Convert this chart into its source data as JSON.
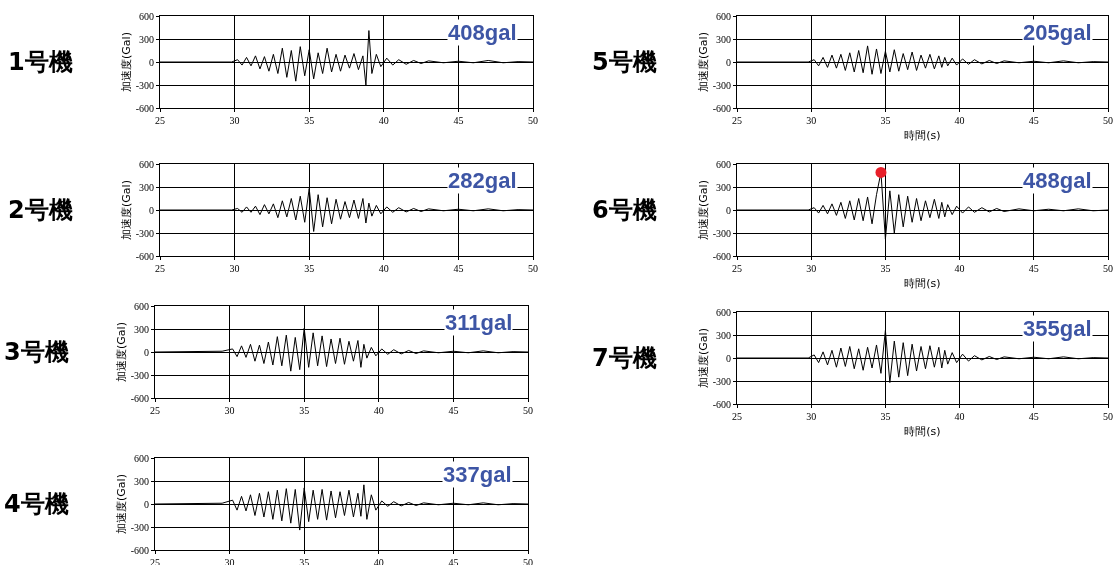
{
  "chart_data": [
    {
      "type": "line",
      "title": "1号機",
      "ylabel": "加速度(Gal)",
      "annotations": [
        "408gal"
      ],
      "xlim": [
        25,
        50
      ],
      "xticks": [
        25,
        30,
        35,
        40,
        45,
        50
      ],
      "ylim": [
        -600,
        600
      ],
      "yticks": [
        -600,
        -300,
        0,
        300,
        600
      ],
      "grid": true,
      "x": [
        25,
        29.8,
        30.2,
        30.5,
        30.8,
        31.1,
        31.4,
        31.7,
        32.0,
        32.3,
        32.6,
        32.9,
        33.2,
        33.5,
        33.8,
        34.1,
        34.4,
        34.7,
        35.0,
        35.3,
        35.6,
        35.9,
        36.2,
        36.5,
        36.8,
        37.1,
        37.4,
        37.7,
        38.0,
        38.3,
        38.6,
        38.8,
        39.0,
        39.2,
        39.5,
        39.8,
        40.2,
        40.6,
        41.0,
        41.5,
        42.0,
        42.5,
        43.0,
        44,
        45,
        46,
        47,
        48,
        49,
        50
      ],
      "series": [
        {
          "color": "#000000",
          "values": [
            0,
            0,
            30,
            -40,
            60,
            -50,
            80,
            -90,
            70,
            -120,
            100,
            -150,
            180,
            -200,
            150,
            -250,
            200,
            -180,
            160,
            -220,
            120,
            -150,
            180,
            -130,
            100,
            -120,
            90,
            -80,
            110,
            -100,
            80,
            -300,
            410,
            -150,
            100,
            -60,
            50,
            -40,
            30,
            -30,
            20,
            -20,
            15,
            -10,
            10,
            -10,
            20,
            -10,
            5,
            0
          ]
        }
      ]
    },
    {
      "type": "line",
      "title": "2号機",
      "ylabel": "加速度(Gal)",
      "annotations": [
        "282gal"
      ],
      "xlim": [
        25,
        50
      ],
      "xticks": [
        25,
        30,
        35,
        40,
        45,
        50
      ],
      "ylim": [
        -600,
        600
      ],
      "yticks": [
        -600,
        -300,
        0,
        300,
        600
      ],
      "grid": true,
      "x": [
        25,
        29.8,
        30.2,
        30.5,
        30.8,
        31.1,
        31.4,
        31.7,
        32.0,
        32.3,
        32.6,
        32.9,
        33.2,
        33.5,
        33.8,
        34.1,
        34.4,
        34.7,
        35.0,
        35.3,
        35.6,
        35.9,
        36.2,
        36.5,
        36.8,
        37.1,
        37.4,
        37.7,
        38.0,
        38.3,
        38.6,
        38.8,
        39.0,
        39.2,
        39.5,
        39.8,
        40.2,
        40.6,
        41.0,
        41.5,
        42.0,
        42.5,
        43.0,
        44,
        45,
        46,
        47,
        48,
        49,
        50
      ],
      "series": [
        {
          "color": "#000000",
          "values": [
            0,
            0,
            20,
            -30,
            40,
            -30,
            50,
            -60,
            70,
            -50,
            80,
            -100,
            120,
            -90,
            150,
            -130,
            180,
            -160,
            280,
            -280,
            200,
            -220,
            160,
            -180,
            140,
            -120,
            110,
            -100,
            130,
            -110,
            150,
            -170,
            90,
            -80,
            60,
            -50,
            40,
            -30,
            30,
            -25,
            20,
            -20,
            15,
            -10,
            10,
            -10,
            15,
            -10,
            5,
            0
          ]
        }
      ]
    },
    {
      "type": "line",
      "title": "3号機",
      "ylabel": "加速度(Gal)",
      "annotations": [
        "311gal"
      ],
      "xlim": [
        25,
        50
      ],
      "xticks": [
        25,
        30,
        35,
        40,
        45,
        50
      ],
      "ylim": [
        -600,
        600
      ],
      "yticks": [
        -600,
        -300,
        0,
        300,
        600
      ],
      "grid": true,
      "x": [
        25,
        29.5,
        30.2,
        30.5,
        30.8,
        31.1,
        31.4,
        31.7,
        32.0,
        32.3,
        32.6,
        32.9,
        33.2,
        33.5,
        33.8,
        34.1,
        34.4,
        34.7,
        35.0,
        35.3,
        35.6,
        35.9,
        36.2,
        36.5,
        36.8,
        37.1,
        37.4,
        37.7,
        38.0,
        38.3,
        38.6,
        38.8,
        39.0,
        39.2,
        39.5,
        39.8,
        40.2,
        40.6,
        41.0,
        41.5,
        42.0,
        42.5,
        43.0,
        44,
        45,
        46,
        47,
        48,
        49,
        50
      ],
      "series": [
        {
          "color": "#000000",
          "values": [
            0,
            10,
            40,
            -60,
            80,
            -70,
            100,
            -120,
            90,
            -150,
            130,
            -170,
            200,
            -180,
            220,
            -250,
            190,
            -230,
            310,
            -200,
            250,
            -180,
            210,
            -190,
            170,
            -150,
            180,
            -160,
            140,
            -120,
            150,
            -200,
            100,
            -80,
            60,
            -50,
            40,
            -30,
            30,
            -25,
            20,
            -20,
            15,
            -10,
            10,
            -10,
            15,
            -10,
            5,
            0
          ]
        }
      ]
    },
    {
      "type": "line",
      "title": "4号機",
      "ylabel": "加速度(Gal)",
      "annotations": [
        "337gal"
      ],
      "xlim": [
        25,
        50
      ],
      "xticks": [
        25,
        30,
        35,
        40,
        45,
        50
      ],
      "ylim": [
        -600,
        600
      ],
      "yticks": [
        -600,
        -300,
        0,
        300,
        600
      ],
      "grid": true,
      "x": [
        25,
        29.5,
        30.2,
        30.5,
        30.8,
        31.1,
        31.4,
        31.7,
        32.0,
        32.3,
        32.6,
        32.9,
        33.2,
        33.5,
        33.8,
        34.1,
        34.4,
        34.7,
        35.0,
        35.3,
        35.6,
        35.9,
        36.2,
        36.5,
        36.8,
        37.1,
        37.4,
        37.7,
        38.0,
        38.3,
        38.6,
        38.8,
        39.0,
        39.2,
        39.5,
        39.8,
        40.2,
        40.6,
        41.0,
        41.5,
        42.0,
        42.5,
        43.0,
        44,
        45,
        46,
        47,
        48,
        49,
        50
      ],
      "series": [
        {
          "color": "#000000",
          "values": [
            0,
            10,
            50,
            -80,
            100,
            -90,
            120,
            -150,
            140,
            -170,
            160,
            -200,
            180,
            -220,
            200,
            -250,
            190,
            -340,
            210,
            -230,
            180,
            -200,
            190,
            -210,
            170,
            -180,
            160,
            -150,
            180,
            -170,
            140,
            -160,
            250,
            -200,
            120,
            -80,
            40,
            -30,
            30,
            -25,
            20,
            -20,
            15,
            -10,
            10,
            -10,
            15,
            -10,
            5,
            0
          ]
        }
      ]
    },
    {
      "type": "line",
      "title": "5号機",
      "ylabel": "加速度(Gal)",
      "xlabel": "時間(s)",
      "annotations": [
        "205gal"
      ],
      "xlim": [
        25,
        50
      ],
      "xticks": [
        25,
        30,
        35,
        40,
        45,
        50
      ],
      "ylim": [
        -600,
        600
      ],
      "yticks": [
        -600,
        -300,
        0,
        300,
        600
      ],
      "grid": true,
      "x": [
        25,
        29.8,
        30.2,
        30.5,
        30.8,
        31.1,
        31.4,
        31.7,
        32.0,
        32.3,
        32.6,
        32.9,
        33.2,
        33.5,
        33.8,
        34.1,
        34.4,
        34.7,
        35.0,
        35.3,
        35.6,
        35.9,
        36.2,
        36.5,
        36.8,
        37.1,
        37.4,
        37.7,
        38.0,
        38.3,
        38.6,
        38.8,
        39.0,
        39.2,
        39.5,
        39.8,
        40.2,
        40.6,
        41.0,
        41.5,
        42.0,
        42.5,
        43.0,
        44,
        45,
        46,
        47,
        48,
        49,
        50
      ],
      "series": [
        {
          "color": "#000000",
          "values": [
            0,
            0,
            30,
            -50,
            60,
            -70,
            90,
            -80,
            100,
            -110,
            120,
            -130,
            150,
            -140,
            210,
            -160,
            170,
            -150,
            140,
            -130,
            160,
            -120,
            110,
            -100,
            130,
            -110,
            90,
            -80,
            100,
            -90,
            80,
            -70,
            60,
            -50,
            50,
            -40,
            40,
            -30,
            30,
            -25,
            20,
            -20,
            15,
            -10,
            10,
            -10,
            15,
            -10,
            5,
            0
          ]
        }
      ]
    },
    {
      "type": "line",
      "title": "6号機",
      "ylabel": "加速度(Gal)",
      "xlabel": "時間(s)",
      "annotations": [
        "488gal"
      ],
      "xlim": [
        25,
        50
      ],
      "xticks": [
        25,
        30,
        35,
        40,
        45,
        50
      ],
      "ylim": [
        -600,
        600
      ],
      "yticks": [
        -600,
        -300,
        0,
        300,
        600
      ],
      "grid": true,
      "x": [
        25,
        29.8,
        30.2,
        30.5,
        30.8,
        31.1,
        31.4,
        31.7,
        32.0,
        32.3,
        32.6,
        32.9,
        33.2,
        33.5,
        33.8,
        34.1,
        34.4,
        34.7,
        35.0,
        35.3,
        35.6,
        35.9,
        36.2,
        36.5,
        36.8,
        37.1,
        37.4,
        37.7,
        38.0,
        38.3,
        38.6,
        38.8,
        39.0,
        39.2,
        39.5,
        39.8,
        40.2,
        40.6,
        41.0,
        41.5,
        42.0,
        42.5,
        43.0,
        44,
        45,
        46,
        47,
        48,
        49,
        50
      ],
      "series": [
        {
          "color": "#000000",
          "values": [
            0,
            0,
            30,
            -40,
            60,
            -50,
            80,
            -70,
            100,
            -110,
            120,
            -130,
            150,
            -140,
            170,
            -180,
            200,
            490,
            -380,
            250,
            -300,
            200,
            -220,
            180,
            -160,
            150,
            -140,
            120,
            -100,
            140,
            -110,
            100,
            -90,
            70,
            -60,
            50,
            -40,
            40,
            -30,
            30,
            -25,
            20,
            -20,
            15,
            -10,
            10,
            -10,
            15,
            -10,
            0
          ]
        },
        {
          "type": "scatter",
          "color": "#e8202a",
          "marker": "circle",
          "x": [
            34.7
          ],
          "values": [
            490
          ]
        }
      ]
    },
    {
      "type": "line",
      "title": "7号機",
      "ylabel": "加速度(Gal)",
      "xlabel": "時間(s)",
      "annotations": [
        "355gal"
      ],
      "xlim": [
        25,
        50
      ],
      "xticks": [
        25,
        30,
        35,
        40,
        45,
        50
      ],
      "ylim": [
        -600,
        600
      ],
      "yticks": [
        -600,
        -300,
        0,
        300,
        600
      ],
      "grid": true,
      "x": [
        25,
        29.8,
        30.2,
        30.5,
        30.8,
        31.1,
        31.4,
        31.7,
        32.0,
        32.3,
        32.6,
        32.9,
        33.2,
        33.5,
        33.8,
        34.1,
        34.4,
        34.7,
        35.0,
        35.3,
        35.6,
        35.9,
        36.2,
        36.5,
        36.8,
        37.1,
        37.4,
        37.7,
        38.0,
        38.3,
        38.6,
        38.8,
        39.0,
        39.2,
        39.5,
        39.8,
        40.2,
        40.6,
        41.0,
        41.5,
        42.0,
        42.5,
        43.0,
        44,
        45,
        46,
        47,
        48,
        49,
        50
      ],
      "series": [
        {
          "color": "#000000",
          "values": [
            0,
            0,
            40,
            -60,
            80,
            -90,
            100,
            -120,
            130,
            -110,
            150,
            -140,
            120,
            -160,
            140,
            -130,
            170,
            -200,
            360,
            -320,
            220,
            -250,
            200,
            -230,
            180,
            -170,
            150,
            -140,
            160,
            -120,
            140,
            -130,
            100,
            -80,
            70,
            -60,
            50,
            -40,
            30,
            -25,
            20,
            -20,
            15,
            -10,
            10,
            -10,
            15,
            -10,
            5,
            0
          ]
        }
      ]
    }
  ]
}
